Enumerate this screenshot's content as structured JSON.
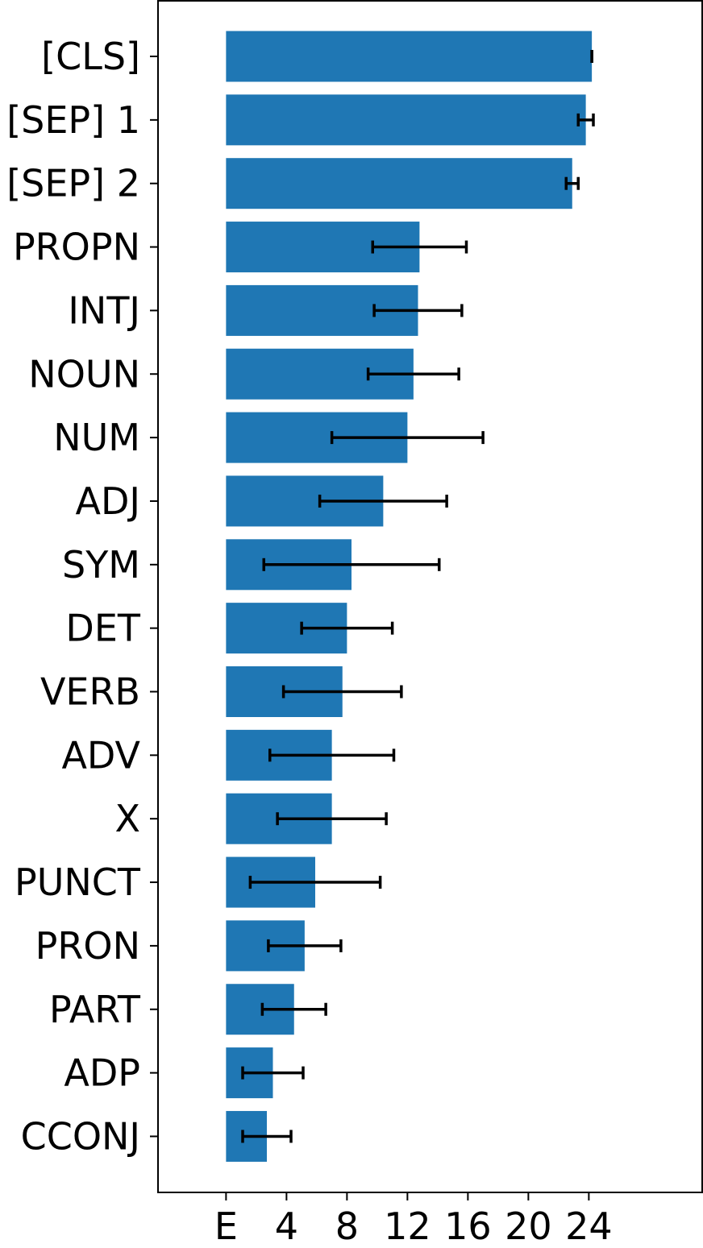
{
  "chart_data": {
    "type": "bar",
    "orientation": "horizontal",
    "categories": [
      "[CLS]",
      "[SEP] 1",
      "[SEP] 2",
      "PROPN",
      "INTJ",
      "NOUN",
      "NUM",
      "ADJ",
      "SYM",
      "DET",
      "VERB",
      "ADV",
      "X",
      "PUNCT",
      "PRON",
      "PART",
      "ADP",
      "CCONJ"
    ],
    "values": [
      24.2,
      23.8,
      22.9,
      12.8,
      12.7,
      12.4,
      12.0,
      10.4,
      8.3,
      8.0,
      7.7,
      7.0,
      7.0,
      5.9,
      5.2,
      4.5,
      3.1,
      2.7
    ],
    "errors": [
      0.0,
      0.5,
      0.4,
      3.1,
      2.9,
      3.0,
      5.0,
      4.2,
      5.8,
      3.0,
      3.9,
      4.1,
      3.6,
      4.3,
      2.4,
      2.1,
      2.0,
      1.6
    ],
    "xlabel": "",
    "ylabel": "",
    "xlim": [
      -4.5,
      31.5
    ],
    "xticks": [
      0,
      4,
      8,
      12,
      16,
      20,
      24
    ],
    "xtick_labels": [
      "E",
      "4",
      "8",
      "12",
      "16",
      "20",
      "24"
    ],
    "bar_color": "#1f77b4",
    "errorbar_color": "#000000",
    "grid": false,
    "legend": "none"
  }
}
